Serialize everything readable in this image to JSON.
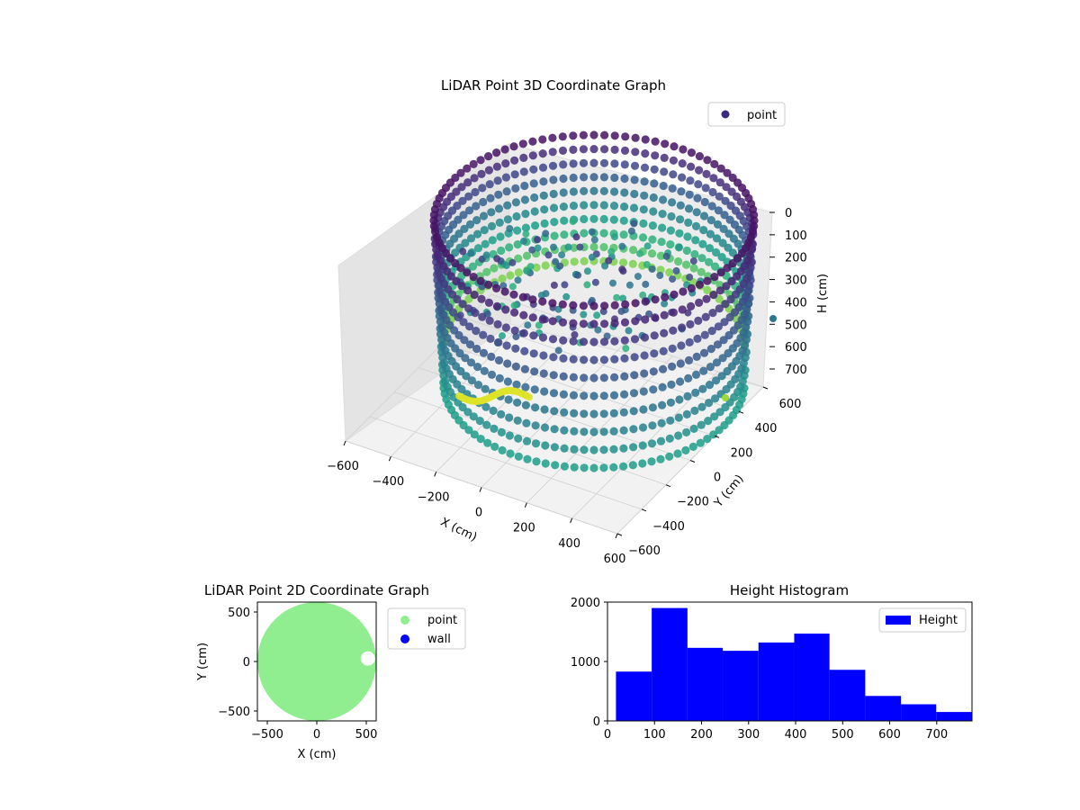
{
  "chart_data": [
    {
      "type": "scatter",
      "projection": "3d",
      "title": "LiDAR Point 3D Coordinate Graph",
      "xlabel": "X (cm)",
      "ylabel": "Y (cm)",
      "zlabel": "H (cm)",
      "xticks": [
        -600,
        -400,
        -200,
        0,
        200,
        400,
        600
      ],
      "yticks": [
        -600,
        -400,
        -200,
        0,
        200,
        400,
        600
      ],
      "zticks": [
        0,
        100,
        200,
        300,
        400,
        500,
        600,
        700
      ],
      "xlim": [
        -600,
        600
      ],
      "ylim": [
        -600,
        600
      ],
      "zlim": [
        770,
        0
      ],
      "z_axis_inverted": true,
      "colormap": "viridis",
      "grid": true,
      "legend": {
        "placement": "upper-right",
        "entries": [
          {
            "label": "point",
            "color": "#3b2a7a"
          }
        ]
      },
      "series": [
        {
          "name": "point"
        }
      ],
      "structure": {
        "wall_radius_cm": 570,
        "wall_height_range_cm": [
          0,
          750
        ],
        "scan_columns": 96
      }
    },
    {
      "type": "scatter",
      "title": "LiDAR Point 2D Coordinate Graph",
      "xlabel": "X (cm)",
      "ylabel": "Y (cm)",
      "xticks": [
        -500,
        0,
        500
      ],
      "yticks": [
        -500,
        0,
        500
      ],
      "xlim": [
        -600,
        600
      ],
      "ylim": [
        -600,
        600
      ],
      "legend": {
        "placement": "outside-right",
        "entries": [
          {
            "label": "point",
            "color": "#90ee90"
          },
          {
            "label": "wall",
            "color": "#0000ff"
          }
        ]
      },
      "series": [
        {
          "name": "point",
          "color": "#90ee90",
          "footprint_radius_cm": 600,
          "notch": {
            "x_cm": 480,
            "y_cm": 30,
            "radius_cm": 120
          }
        },
        {
          "name": "wall",
          "color": "#0000ff",
          "points": []
        }
      ]
    },
    {
      "type": "bar",
      "subtype": "histogram",
      "title": "Height Histogram",
      "xlabel": "",
      "ylabel": "",
      "bin_edges": [
        18,
        94,
        170,
        245,
        321,
        397,
        472,
        548,
        624,
        699,
        775
      ],
      "values": [
        830,
        1900,
        1230,
        1180,
        1320,
        1470,
        860,
        420,
        280,
        150
      ],
      "xlim": [
        0,
        775
      ],
      "ylim": [
        0,
        2000
      ],
      "xticks": [
        0,
        100,
        200,
        300,
        400,
        500,
        600,
        700
      ],
      "yticks": [
        0,
        1000,
        2000
      ],
      "color": "#0000ff",
      "legend": {
        "placement": "top-right",
        "entries": [
          {
            "label": "Height",
            "color": "#0000ff"
          }
        ]
      },
      "series": [
        {
          "name": "Height"
        }
      ]
    }
  ]
}
